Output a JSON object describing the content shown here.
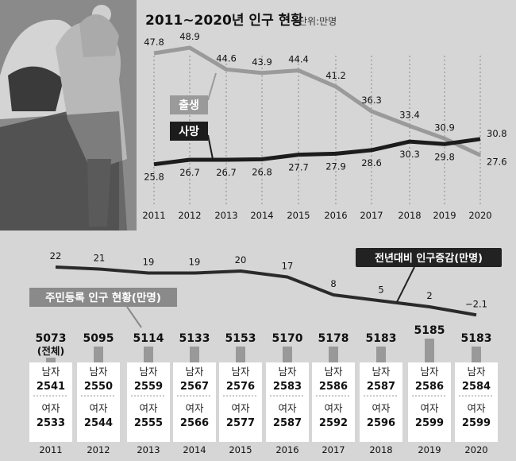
{
  "chart_data": [
    {
      "type": "line",
      "title": "2011~2020년 인구 현황",
      "unit": "단위:만명",
      "x": [
        "2011",
        "2012",
        "2013",
        "2014",
        "2015",
        "2016",
        "2017",
        "2018",
        "2019",
        "2020"
      ],
      "series": [
        {
          "name": "출생",
          "values": [
            47.8,
            48.9,
            44.6,
            43.9,
            44.4,
            41.2,
            36.3,
            33.4,
            30.9,
            27.6
          ],
          "color": "#9a9a9a"
        },
        {
          "name": "사망",
          "values": [
            25.8,
            26.7,
            26.7,
            26.8,
            27.7,
            27.9,
            28.6,
            30.3,
            29.8,
            30.8
          ],
          "color": "#1c1c1c"
        }
      ]
    },
    {
      "type": "line",
      "series": [
        {
          "name": "전년대비 인구증감(만명)",
          "values": [
            22,
            21,
            19,
            19,
            20,
            17,
            8,
            5,
            2,
            -2.1
          ],
          "labels": [
            "22",
            "21",
            "19",
            "19",
            "20",
            "17",
            "8",
            "5",
            "2",
            "−2.1"
          ],
          "color": "#2a2a2a"
        }
      ]
    },
    {
      "type": "table",
      "title": "주민등록 인구 현황(만명)",
      "years": [
        "2011",
        "2012",
        "2013",
        "2014",
        "2015",
        "2016",
        "2017",
        "2018",
        "2019",
        "2020"
      ],
      "total": [
        5073,
        5095,
        5114,
        5133,
        5153,
        5170,
        5178,
        5183,
        5185,
        5183
      ],
      "total_note": "(전체)",
      "male_label": "남자",
      "female_label": "여자",
      "male": [
        2541,
        2550,
        2559,
        2567,
        2576,
        2583,
        2586,
        2587,
        2586,
        2584
      ],
      "female": [
        2533,
        2544,
        2555,
        2566,
        2577,
        2587,
        2592,
        2596,
        2599,
        2599
      ]
    }
  ]
}
